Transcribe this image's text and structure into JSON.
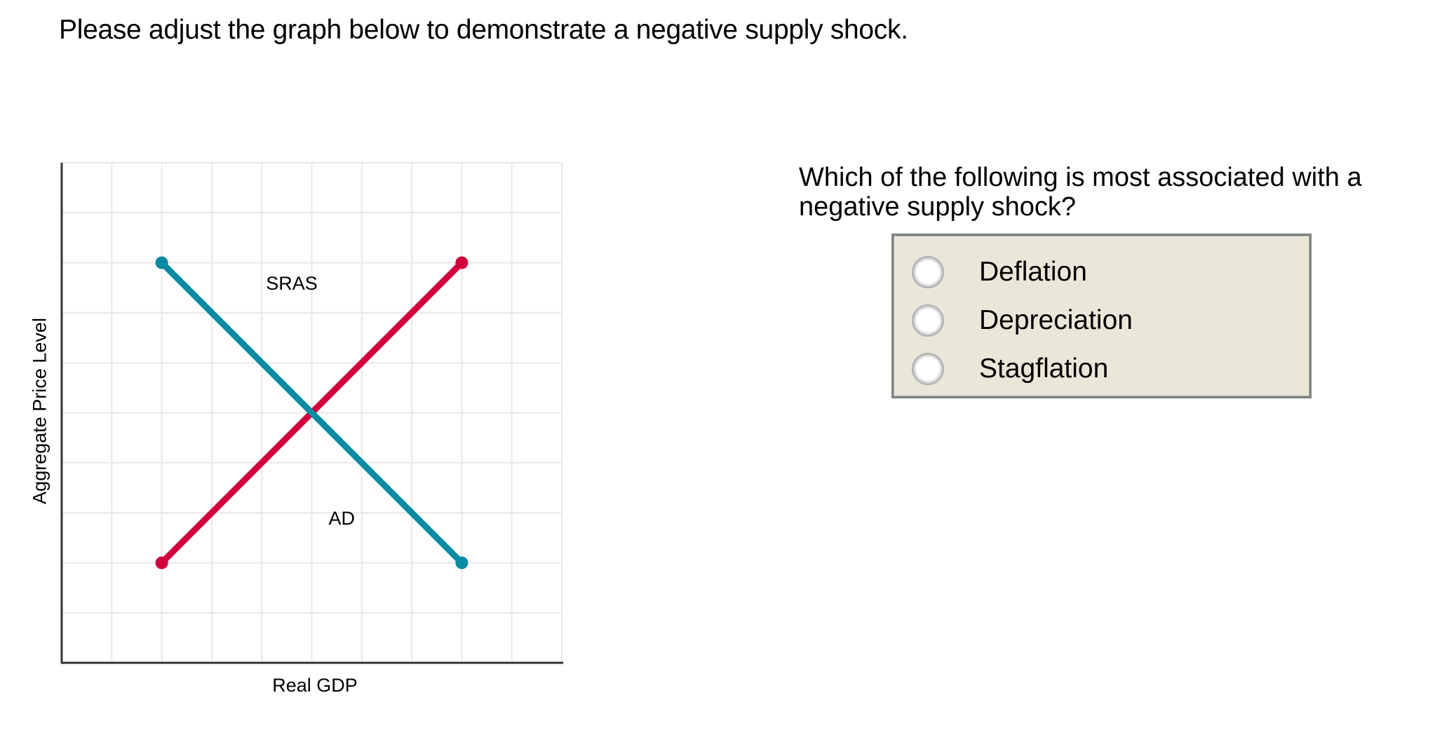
{
  "instruction": "Please adjust the graph below to demonstrate a negative supply shock.",
  "question": {
    "text": "Which of the following is most associated with a negative supply shock?",
    "options": [
      {
        "label": "Deflation",
        "selected": false
      },
      {
        "label": "Depreciation",
        "selected": false
      },
      {
        "label": "Stagflation",
        "selected": false
      }
    ]
  },
  "colors": {
    "sras": "#d1003c",
    "ad": "#0a8aa3",
    "grid": "#e8e8e8",
    "axis": "#333333",
    "options_bg": "#ebe7d8",
    "options_border": "#7d8383"
  },
  "chart_data": {
    "type": "line",
    "title": "",
    "xlabel": "Real GDP",
    "ylabel": "Aggregate Price Level",
    "xlim": [
      0,
      10
    ],
    "ylim": [
      0,
      10
    ],
    "grid": true,
    "tick_labels": false,
    "series": [
      {
        "name": "SRAS",
        "color": "#d1003c",
        "points": [
          [
            2,
            2
          ],
          [
            8,
            8
          ]
        ],
        "label_pos": [
          4.6,
          7.6
        ]
      },
      {
        "name": "AD",
        "color": "#0a8aa3",
        "points": [
          [
            2,
            8
          ],
          [
            8,
            2
          ]
        ],
        "label_pos": [
          5.6,
          2.9
        ]
      }
    ],
    "equilibrium": [
      5,
      5
    ]
  }
}
